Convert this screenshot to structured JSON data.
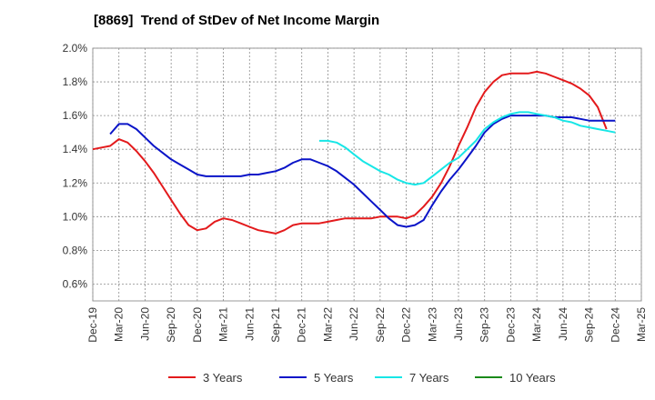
{
  "chart_data": {
    "type": "line",
    "title": "[8869]  Trend of StDev of Net Income Margin",
    "xlabel": "",
    "ylabel": "",
    "x_ticks": [
      "Dec-19",
      "Mar-20",
      "Jun-20",
      "Sep-20",
      "Dec-20",
      "Mar-21",
      "Jun-21",
      "Sep-21",
      "Dec-21",
      "Mar-22",
      "Jun-22",
      "Sep-22",
      "Dec-22",
      "Mar-23",
      "Jun-23",
      "Sep-23",
      "Dec-23",
      "Mar-24",
      "Jun-24",
      "Sep-24",
      "Dec-24",
      "Mar-25"
    ],
    "y_ticks": [
      "0.6%",
      "0.8%",
      "1.0%",
      "1.2%",
      "1.4%",
      "1.6%",
      "1.8%",
      "2.0%"
    ],
    "ylim": [
      0.5,
      2.0
    ],
    "y_unit": "%",
    "grid": true,
    "legend_position": "bottom",
    "series": [
      {
        "name": "3 Years",
        "color": "#e31a1c",
        "points": [
          [
            "Dec-19",
            1.4
          ],
          [
            "Jan-20",
            1.41
          ],
          [
            "Feb-20",
            1.42
          ],
          [
            "Mar-20",
            1.46
          ],
          [
            "Apr-20",
            1.44
          ],
          [
            "May-20",
            1.39
          ],
          [
            "Jun-20",
            1.33
          ],
          [
            "Jul-20",
            1.26
          ],
          [
            "Aug-20",
            1.18
          ],
          [
            "Sep-20",
            1.1
          ],
          [
            "Oct-20",
            1.02
          ],
          [
            "Nov-20",
            0.95
          ],
          [
            "Dec-20",
            0.92
          ],
          [
            "Jan-21",
            0.93
          ],
          [
            "Feb-21",
            0.97
          ],
          [
            "Mar-21",
            0.99
          ],
          [
            "Apr-21",
            0.98
          ],
          [
            "May-21",
            0.96
          ],
          [
            "Jun-21",
            0.94
          ],
          [
            "Jul-21",
            0.92
          ],
          [
            "Aug-21",
            0.91
          ],
          [
            "Sep-21",
            0.9
          ],
          [
            "Oct-21",
            0.92
          ],
          [
            "Nov-21",
            0.95
          ],
          [
            "Dec-21",
            0.96
          ],
          [
            "Jan-22",
            0.96
          ],
          [
            "Feb-22",
            0.96
          ],
          [
            "Mar-22",
            0.97
          ],
          [
            "Apr-22",
            0.98
          ],
          [
            "May-22",
            0.99
          ],
          [
            "Jun-22",
            0.99
          ],
          [
            "Jul-22",
            0.99
          ],
          [
            "Aug-22",
            0.99
          ],
          [
            "Sep-22",
            1.0
          ],
          [
            "Oct-22",
            1.0
          ],
          [
            "Nov-22",
            1.0
          ],
          [
            "Dec-22",
            0.99
          ],
          [
            "Jan-23",
            1.01
          ],
          [
            "Feb-23",
            1.06
          ],
          [
            "Mar-23",
            1.12
          ],
          [
            "Apr-23",
            1.2
          ],
          [
            "May-23",
            1.3
          ],
          [
            "Jun-23",
            1.42
          ],
          [
            "Jul-23",
            1.53
          ],
          [
            "Aug-23",
            1.65
          ],
          [
            "Sep-23",
            1.74
          ],
          [
            "Oct-23",
            1.8
          ],
          [
            "Nov-23",
            1.84
          ],
          [
            "Dec-23",
            1.85
          ],
          [
            "Jan-24",
            1.85
          ],
          [
            "Feb-24",
            1.85
          ],
          [
            "Mar-24",
            1.86
          ],
          [
            "Apr-24",
            1.85
          ],
          [
            "May-24",
            1.83
          ],
          [
            "Jun-24",
            1.81
          ],
          [
            "Jul-24",
            1.79
          ],
          [
            "Aug-24",
            1.76
          ],
          [
            "Sep-24",
            1.72
          ],
          [
            "Oct-24",
            1.65
          ],
          [
            "Nov-24",
            1.52
          ]
        ]
      },
      {
        "name": "5 Years",
        "color": "#0a14c8",
        "points": [
          [
            "Feb-20",
            1.49
          ],
          [
            "Mar-20",
            1.55
          ],
          [
            "Apr-20",
            1.55
          ],
          [
            "May-20",
            1.52
          ],
          [
            "Jun-20",
            1.47
          ],
          [
            "Jul-20",
            1.42
          ],
          [
            "Aug-20",
            1.38
          ],
          [
            "Sep-20",
            1.34
          ],
          [
            "Oct-20",
            1.31
          ],
          [
            "Nov-20",
            1.28
          ],
          [
            "Dec-20",
            1.25
          ],
          [
            "Jan-21",
            1.24
          ],
          [
            "Feb-21",
            1.24
          ],
          [
            "Mar-21",
            1.24
          ],
          [
            "Apr-21",
            1.24
          ],
          [
            "May-21",
            1.24
          ],
          [
            "Jun-21",
            1.25
          ],
          [
            "Jul-21",
            1.25
          ],
          [
            "Aug-21",
            1.26
          ],
          [
            "Sep-21",
            1.27
          ],
          [
            "Oct-21",
            1.29
          ],
          [
            "Nov-21",
            1.32
          ],
          [
            "Dec-21",
            1.34
          ],
          [
            "Jan-22",
            1.34
          ],
          [
            "Feb-22",
            1.32
          ],
          [
            "Mar-22",
            1.3
          ],
          [
            "Apr-22",
            1.27
          ],
          [
            "May-22",
            1.23
          ],
          [
            "Jun-22",
            1.19
          ],
          [
            "Jul-22",
            1.14
          ],
          [
            "Aug-22",
            1.09
          ],
          [
            "Sep-22",
            1.04
          ],
          [
            "Oct-22",
            0.99
          ],
          [
            "Nov-22",
            0.95
          ],
          [
            "Dec-22",
            0.94
          ],
          [
            "Jan-23",
            0.95
          ],
          [
            "Feb-23",
            0.98
          ],
          [
            "Mar-23",
            1.07
          ],
          [
            "Apr-23",
            1.15
          ],
          [
            "May-23",
            1.22
          ],
          [
            "Jun-23",
            1.28
          ],
          [
            "Jul-23",
            1.35
          ],
          [
            "Aug-23",
            1.42
          ],
          [
            "Sep-23",
            1.5
          ],
          [
            "Oct-23",
            1.55
          ],
          [
            "Nov-23",
            1.58
          ],
          [
            "Dec-23",
            1.6
          ],
          [
            "Jan-24",
            1.6
          ],
          [
            "Feb-24",
            1.6
          ],
          [
            "Mar-24",
            1.6
          ],
          [
            "Apr-24",
            1.6
          ],
          [
            "May-24",
            1.59
          ],
          [
            "Jun-24",
            1.59
          ],
          [
            "Jul-24",
            1.59
          ],
          [
            "Aug-24",
            1.58
          ],
          [
            "Sep-24",
            1.57
          ],
          [
            "Oct-24",
            1.57
          ],
          [
            "Nov-24",
            1.57
          ],
          [
            "Dec-24",
            1.57
          ]
        ]
      },
      {
        "name": "7 Years",
        "color": "#17e6e6",
        "points": [
          [
            "Feb-22",
            1.45
          ],
          [
            "Mar-22",
            1.45
          ],
          [
            "Apr-22",
            1.44
          ],
          [
            "May-22",
            1.41
          ],
          [
            "Jun-22",
            1.37
          ],
          [
            "Jul-22",
            1.33
          ],
          [
            "Aug-22",
            1.3
          ],
          [
            "Sep-22",
            1.27
          ],
          [
            "Oct-22",
            1.25
          ],
          [
            "Nov-22",
            1.22
          ],
          [
            "Dec-22",
            1.2
          ],
          [
            "Jan-23",
            1.19
          ],
          [
            "Feb-23",
            1.2
          ],
          [
            "Mar-23",
            1.24
          ],
          [
            "Apr-23",
            1.28
          ],
          [
            "May-23",
            1.32
          ],
          [
            "Jun-23",
            1.35
          ],
          [
            "Jul-23",
            1.4
          ],
          [
            "Aug-23",
            1.45
          ],
          [
            "Sep-23",
            1.52
          ],
          [
            "Oct-23",
            1.56
          ],
          [
            "Nov-23",
            1.59
          ],
          [
            "Dec-23",
            1.61
          ],
          [
            "Jan-24",
            1.62
          ],
          [
            "Feb-24",
            1.62
          ],
          [
            "Mar-24",
            1.61
          ],
          [
            "Apr-24",
            1.6
          ],
          [
            "May-24",
            1.59
          ],
          [
            "Jun-24",
            1.57
          ],
          [
            "Jul-24",
            1.56
          ],
          [
            "Aug-24",
            1.54
          ],
          [
            "Sep-24",
            1.53
          ],
          [
            "Oct-24",
            1.52
          ],
          [
            "Nov-24",
            1.51
          ],
          [
            "Dec-24",
            1.5
          ]
        ]
      },
      {
        "name": "10 Years",
        "color": "#1a8a1a",
        "points": []
      }
    ]
  }
}
